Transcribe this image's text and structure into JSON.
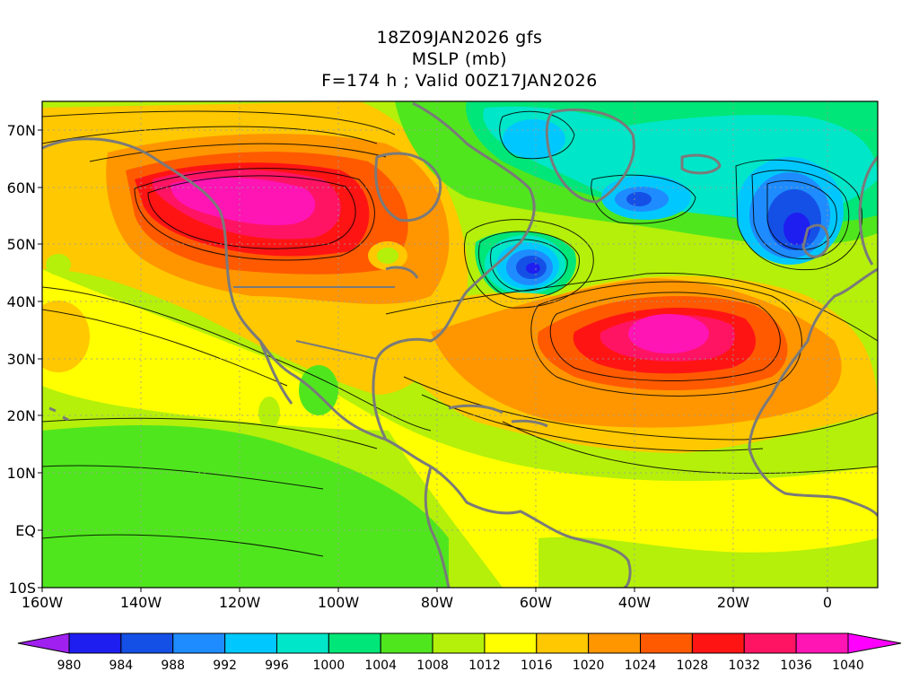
{
  "title": {
    "line1": "18Z09JAN2026 gfs",
    "line2": "MSLP (mb)",
    "line3": "F=174 h ; Valid 00Z17JAN2026"
  },
  "lat_labels": [
    "70N",
    "60N",
    "50N",
    "40N",
    "30N",
    "20N",
    "10N",
    "EQ",
    "10S"
  ],
  "lon_labels": [
    "160W",
    "140W",
    "120W",
    "100W",
    "80W",
    "60W",
    "40W",
    "20W",
    "0"
  ],
  "colorbar": {
    "levels": [
      "980",
      "984",
      "988",
      "992",
      "996",
      "1000",
      "1004",
      "1008",
      "1012",
      "1016",
      "1020",
      "1024",
      "1028",
      "1032",
      "1036",
      "1040"
    ],
    "colors": [
      "#a020f0",
      "#1e1ef0",
      "#1450e6",
      "#1e8cff",
      "#00c8ff",
      "#00e6c8",
      "#00e678",
      "#50e61e",
      "#b4f00a",
      "#ffff00",
      "#ffc800",
      "#ff9600",
      "#ff5a00",
      "#ff1414",
      "#ff1464",
      "#ff14b4",
      "#ff00ff"
    ]
  }
}
